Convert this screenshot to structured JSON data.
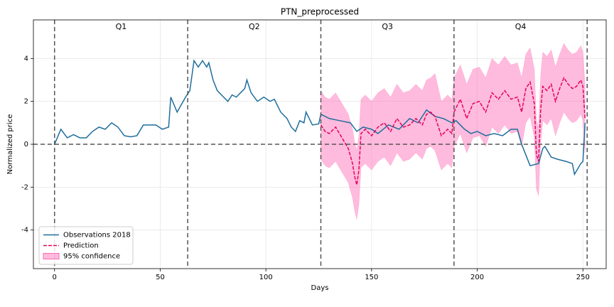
{
  "chart_data": {
    "type": "line",
    "title": "PTN_preprocessed",
    "xlabel": "Days",
    "ylabel": "Normalized price",
    "xlim": [
      -10,
      261
    ],
    "ylim": [
      -5.8,
      5.8
    ],
    "xticks": [
      0,
      50,
      100,
      150,
      200,
      250
    ],
    "yticks": [
      -4,
      -2,
      0,
      2,
      4
    ],
    "grid": true,
    "legend": "lower left",
    "vlines": [
      0,
      63,
      126,
      189,
      252
    ],
    "hlines": [
      0
    ],
    "quarters": [
      "Q1",
      "Q2",
      "Q3",
      "Q4"
    ],
    "series": [
      {
        "name": "Observations 2018",
        "color": "#1f6e9c",
        "linestyle": "solid",
        "x": [
          0,
          3,
          6,
          9,
          12,
          15,
          18,
          21,
          24,
          27,
          30,
          33,
          36,
          39,
          42,
          45,
          48,
          51,
          54,
          55,
          58,
          62,
          64,
          66,
          68,
          70,
          72,
          73,
          75,
          77,
          80,
          82,
          84,
          86,
          88,
          90,
          91,
          93,
          96,
          99,
          102,
          104,
          107,
          110,
          112,
          114,
          116,
          118,
          119,
          122,
          125,
          126,
          130,
          135,
          140,
          143,
          146,
          150,
          153,
          158,
          163,
          168,
          172,
          176,
          180,
          184,
          188,
          190,
          194,
          197,
          200,
          204,
          208,
          212,
          216,
          219,
          221,
          223,
          225,
          229,
          231,
          232,
          235,
          238,
          242,
          245,
          246,
          249,
          250,
          251
        ],
        "values": [
          0,
          0.7,
          0.3,
          0.45,
          0.3,
          0.3,
          0.6,
          0.8,
          0.7,
          1.0,
          0.8,
          0.4,
          0.35,
          0.4,
          0.9,
          0.9,
          0.9,
          0.7,
          0.8,
          2.2,
          1.5,
          2.2,
          2.5,
          3.9,
          3.6,
          3.9,
          3.6,
          3.8,
          3.0,
          2.5,
          2.2,
          2.0,
          2.3,
          2.2,
          2.4,
          2.6,
          3.0,
          2.4,
          2.0,
          2.2,
          2.0,
          2.1,
          1.5,
          1.2,
          0.8,
          0.6,
          1.1,
          1.0,
          1.5,
          0.9,
          0.95,
          1.4,
          1.2,
          1.1,
          1.0,
          0.6,
          0.8,
          0.7,
          0.5,
          0.9,
          0.7,
          1.2,
          1.0,
          1.6,
          1.3,
          1.2,
          1.0,
          1.1,
          0.7,
          0.5,
          0.6,
          0.4,
          0.5,
          0.4,
          0.7,
          0.7,
          0.0,
          -0.5,
          -1.0,
          -0.9,
          -0.2,
          -0.1,
          -0.6,
          -0.7,
          -0.8,
          -0.9,
          -1.4,
          -0.9,
          -0.8,
          1.0
        ]
      },
      {
        "name": "Prediction",
        "color": "#e6005c",
        "linestyle": "dashed",
        "x": [
          126,
          128,
          130,
          133,
          136,
          139,
          141,
          142,
          143,
          144,
          145,
          147,
          150,
          153,
          156,
          159,
          162,
          165,
          168,
          171,
          174,
          176,
          178,
          180,
          183,
          186,
          188,
          189,
          192,
          195,
          198,
          201,
          204,
          207,
          210,
          213,
          216,
          219,
          221,
          223,
          225,
          227,
          228,
          229,
          230,
          231,
          233,
          235,
          237,
          239,
          241,
          243,
          245,
          247,
          249,
          250,
          251
        ],
        "values": [
          0.9,
          0.6,
          0.5,
          0.8,
          0.3,
          -0.2,
          -0.9,
          -1.5,
          -1.9,
          -1.2,
          0.5,
          0.7,
          0.4,
          0.8,
          1.0,
          0.6,
          1.2,
          0.8,
          0.9,
          1.2,
          0.9,
          1.4,
          1.5,
          1.3,
          0.4,
          0.7,
          0.5,
          1.5,
          2.1,
          1.2,
          1.9,
          2.0,
          1.5,
          2.4,
          2.1,
          2.5,
          2.1,
          2.2,
          1.5,
          2.6,
          2.9,
          1.9,
          -0.5,
          -0.8,
          1.6,
          2.7,
          2.5,
          2.8,
          2.0,
          2.6,
          3.1,
          2.8,
          2.6,
          2.7,
          3.0,
          2.7,
          1.2
        ]
      },
      {
        "name": "95% confidence",
        "color": "#ff69b4",
        "alpha": 0.45,
        "x": [
          126,
          128,
          130,
          133,
          136,
          139,
          141,
          142,
          143,
          144,
          145,
          147,
          150,
          153,
          156,
          159,
          162,
          165,
          168,
          171,
          174,
          176,
          178,
          180,
          183,
          186,
          188,
          189,
          192,
          195,
          198,
          201,
          204,
          207,
          210,
          213,
          216,
          219,
          221,
          223,
          225,
          227,
          228,
          229,
          230,
          231,
          233,
          235,
          237,
          239,
          241,
          243,
          245,
          247,
          249,
          250,
          251
        ],
        "lower": [
          -0.7,
          -1.0,
          -1.1,
          -0.8,
          -1.3,
          -1.8,
          -2.5,
          -3.1,
          -3.5,
          -2.8,
          -1.1,
          -0.9,
          -1.2,
          -0.8,
          -0.6,
          -1.0,
          -0.4,
          -0.8,
          -0.7,
          -0.4,
          -0.7,
          -0.2,
          -0.1,
          -0.3,
          -1.2,
          -0.9,
          -1.1,
          -0.1,
          0.5,
          -0.4,
          0.3,
          0.4,
          -0.1,
          0.8,
          0.5,
          0.9,
          0.5,
          0.6,
          -0.1,
          1.0,
          1.3,
          0.3,
          -2.1,
          -2.4,
          0.0,
          1.1,
          0.9,
          1.2,
          0.4,
          1.0,
          1.5,
          1.2,
          1.0,
          1.1,
          1.4,
          1.1,
          -0.4
        ],
        "upper": [
          2.5,
          2.2,
          2.1,
          2.4,
          1.9,
          1.4,
          0.7,
          0.1,
          -0.3,
          0.4,
          2.1,
          2.3,
          2.0,
          2.4,
          2.6,
          2.2,
          2.8,
          2.4,
          2.5,
          2.8,
          2.5,
          3.0,
          3.1,
          3.3,
          2.0,
          2.3,
          2.1,
          3.1,
          3.7,
          2.8,
          3.5,
          3.6,
          3.1,
          4.0,
          3.7,
          4.1,
          3.7,
          3.8,
          3.1,
          4.2,
          4.5,
          3.5,
          1.1,
          0.8,
          3.2,
          4.3,
          4.1,
          4.4,
          3.6,
          4.2,
          4.7,
          4.4,
          4.2,
          4.3,
          4.6,
          4.3,
          2.8
        ]
      }
    ]
  }
}
